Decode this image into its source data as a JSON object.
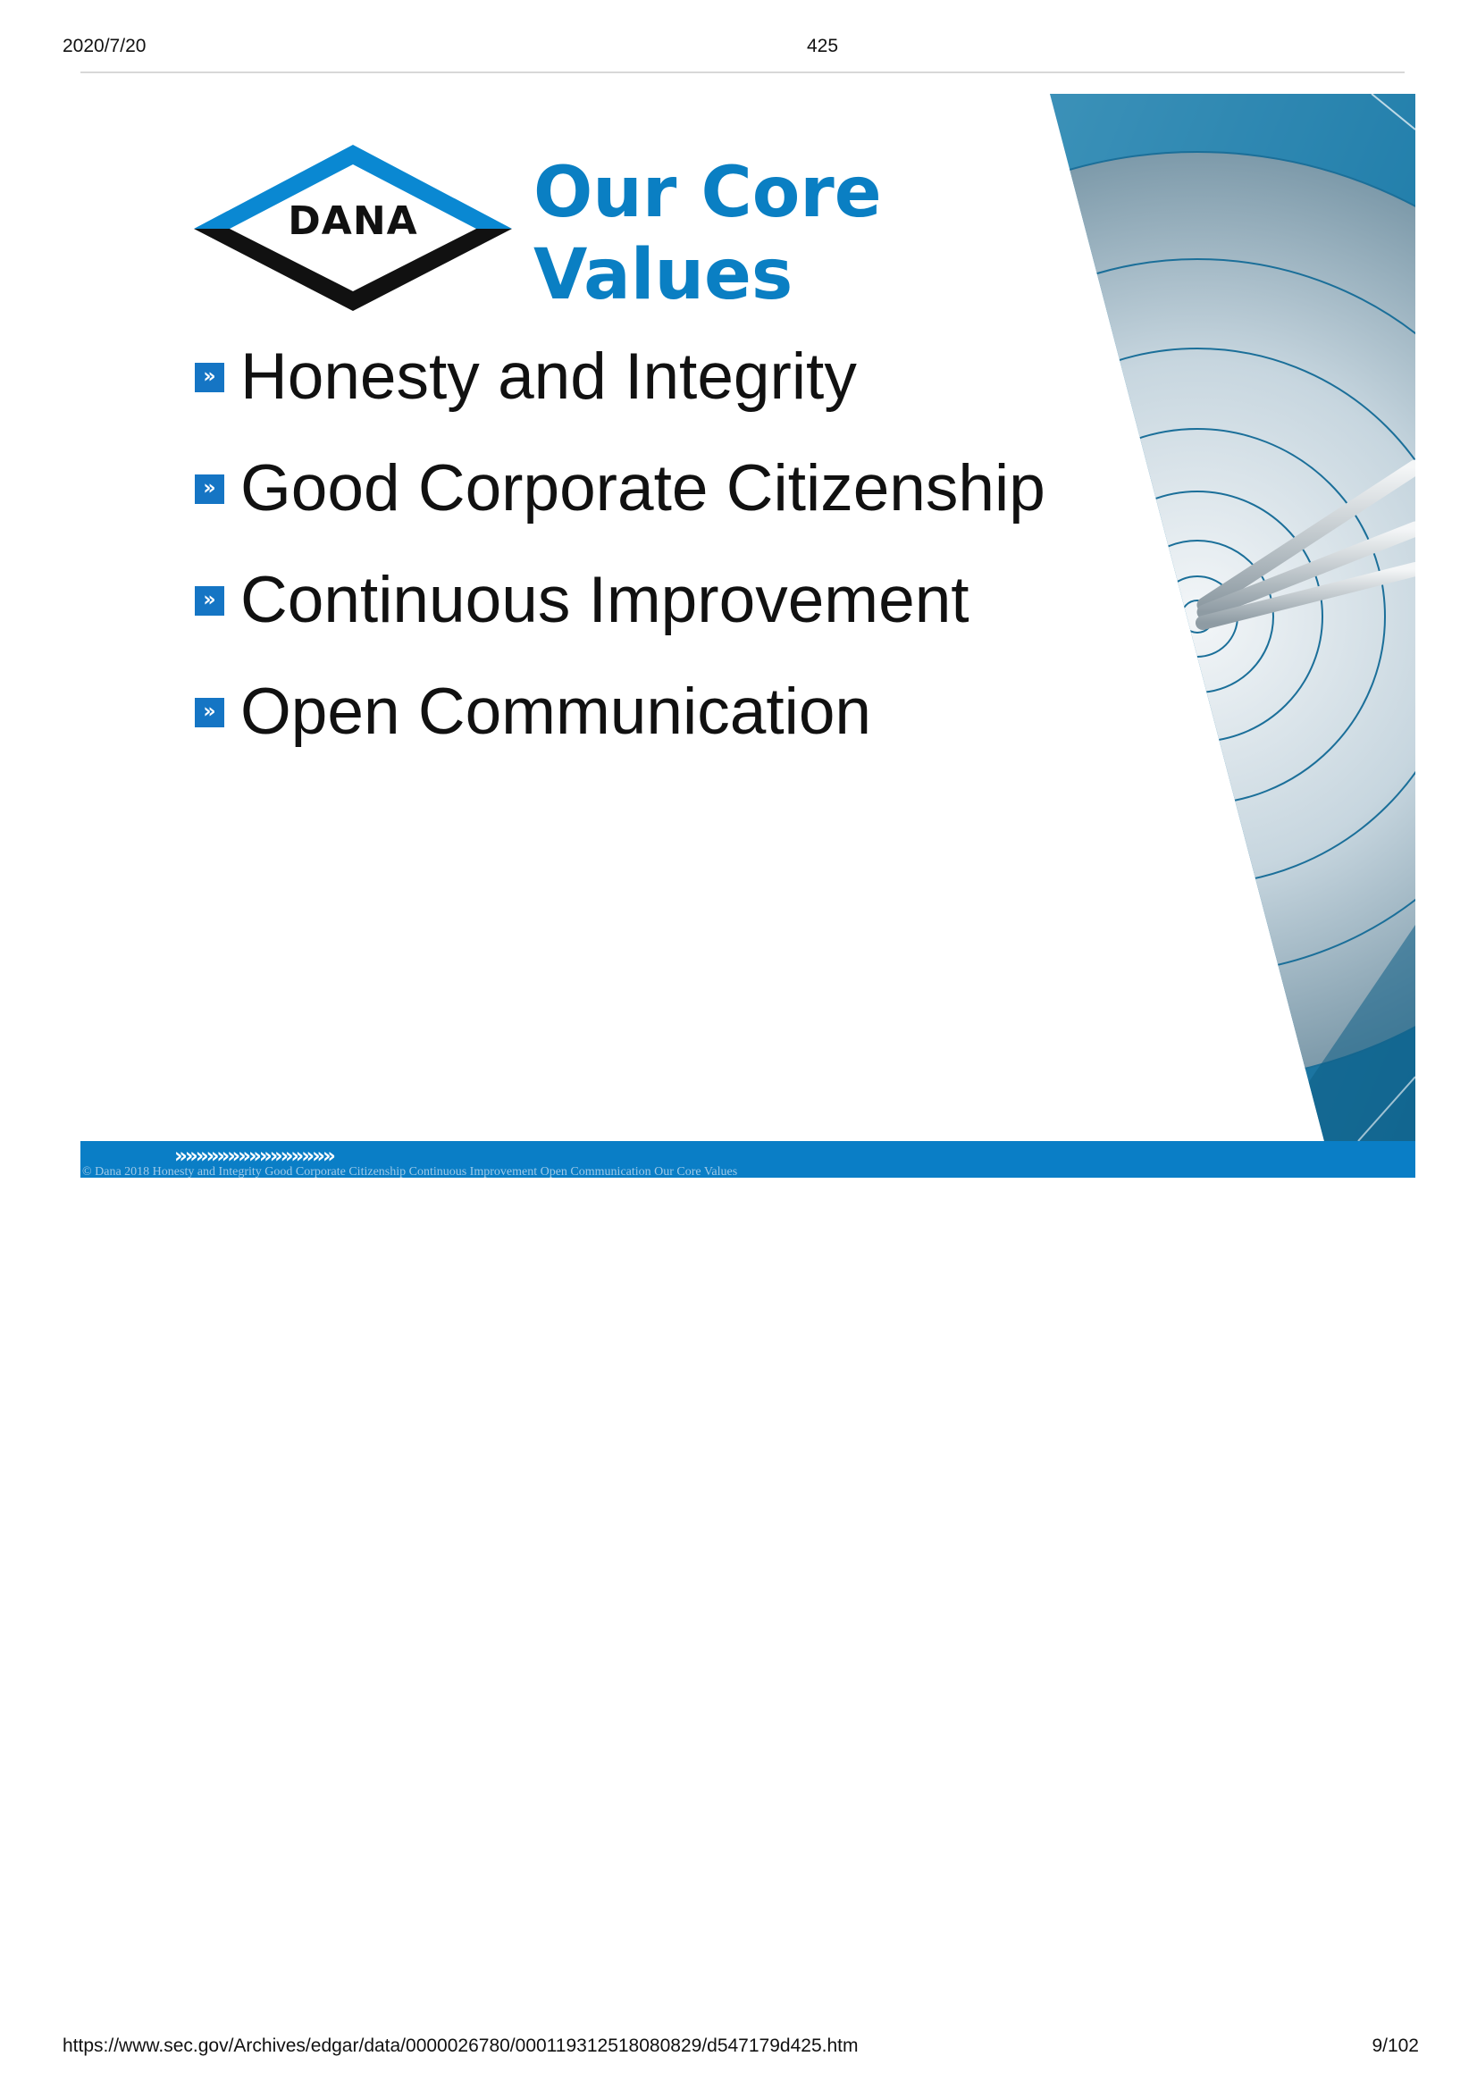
{
  "print_header": {
    "date": "2020/7/20",
    "title": "425"
  },
  "slide": {
    "logo": {
      "text": "DANA",
      "colors": {
        "blue": "#0a88d2",
        "black": "#111111"
      }
    },
    "title_line1": "Our Core",
    "title_line2": "Values",
    "title_color": "#0a7fc3",
    "bullet_icon": "double-chevron-icon",
    "values": [
      "Honesty and Integrity",
      "Good Corporate Citizenship",
      "Continuous Improvement",
      "Open Communication"
    ],
    "footer": {
      "chevrons": "»»»»»»»»»»»»»»»",
      "caption": "© Dana 2018 Honesty and Integrity Good Corporate Citizenship Continuous Improvement Open Communication Our Core Values",
      "bar_color": "#0a7ec6"
    },
    "background_image": "target-with-arrows"
  },
  "print_footer": {
    "url": "https://www.sec.gov/Archives/edgar/data/0000026780/000119312518080829/d547179d425.htm",
    "page": "9/102"
  }
}
